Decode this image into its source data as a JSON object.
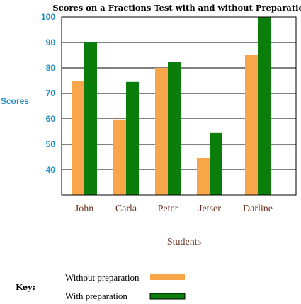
{
  "chart_data": {
    "type": "bar",
    "title": "Scores on a Fractions Test with and without Preparation",
    "xlabel": "Students",
    "ylabel": "Scores",
    "categories": [
      "John",
      "Carla",
      "Peter",
      "Jetser",
      "Darline"
    ],
    "yticks": [
      40,
      50,
      60,
      70,
      80,
      90,
      100
    ],
    "ylim": [
      30,
      100
    ],
    "grid": true,
    "legend_position": "bottom-left",
    "legend_title": "Key:",
    "series": [
      {
        "name": "Without preparation",
        "color": "#f9a64a",
        "values": [
          75,
          59.5,
          80,
          44.5,
          85
        ]
      },
      {
        "name": "With preparation",
        "color": "#0a7d0a",
        "values": [
          90,
          74.5,
          82.5,
          54.5,
          100
        ]
      }
    ]
  }
}
